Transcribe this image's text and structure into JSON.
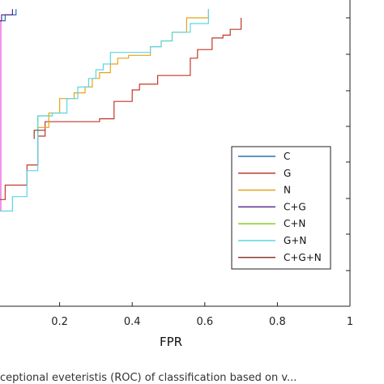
{
  "chart_data": {
    "type": "line",
    "title": "",
    "xlabel": "FPR",
    "ylabel": "",
    "xlim": [
      0,
      1
    ],
    "x_ticks": [
      "0.2",
      "0.4",
      "0.6",
      "0.8",
      "1"
    ],
    "x_tick_values": [
      0.2,
      0.4,
      0.6,
      0.8,
      1.0
    ],
    "grid": false,
    "legend_position": "center-right",
    "series": [
      {
        "name": "C",
        "color": "#2f6fb0",
        "points": [
          [
            0,
            0.99
          ],
          [
            0.05,
            0.99
          ],
          [
            0.05,
            1.01
          ],
          [
            0.08,
            1.01
          ],
          [
            0.08,
            1.03
          ]
        ]
      },
      {
        "name": "G",
        "color": "#c0392b",
        "points": [
          [
            0,
            0.37
          ],
          [
            0.05,
            0.37
          ],
          [
            0.05,
            0.42
          ],
          [
            0.11,
            0.42
          ],
          [
            0.11,
            0.49
          ],
          [
            0.14,
            0.49
          ],
          [
            0.14,
            0.59
          ],
          [
            0.16,
            0.59
          ],
          [
            0.16,
            0.64
          ],
          [
            0.31,
            0.64
          ],
          [
            0.31,
            0.65
          ],
          [
            0.35,
            0.65
          ],
          [
            0.35,
            0.71
          ],
          [
            0.4,
            0.71
          ],
          [
            0.4,
            0.75
          ],
          [
            0.42,
            0.75
          ],
          [
            0.42,
            0.77
          ],
          [
            0.47,
            0.77
          ],
          [
            0.47,
            0.8
          ],
          [
            0.56,
            0.8
          ],
          [
            0.56,
            0.86
          ],
          [
            0.58,
            0.86
          ],
          [
            0.58,
            0.89
          ],
          [
            0.62,
            0.89
          ],
          [
            0.62,
            0.93
          ],
          [
            0.65,
            0.93
          ],
          [
            0.65,
            0.94
          ],
          [
            0.67,
            0.94
          ],
          [
            0.67,
            0.96
          ],
          [
            0.7,
            0.96
          ],
          [
            0.7,
            1.0
          ]
        ]
      },
      {
        "name": "N",
        "color": "#e8a317",
        "points": [
          [
            0.14,
            0.58
          ],
          [
            0.14,
            0.62
          ],
          [
            0.17,
            0.62
          ],
          [
            0.17,
            0.67
          ],
          [
            0.2,
            0.67
          ],
          [
            0.2,
            0.72
          ],
          [
            0.24,
            0.72
          ],
          [
            0.24,
            0.74
          ],
          [
            0.27,
            0.74
          ],
          [
            0.27,
            0.76
          ],
          [
            0.29,
            0.76
          ],
          [
            0.29,
            0.79
          ],
          [
            0.31,
            0.79
          ],
          [
            0.31,
            0.81
          ],
          [
            0.34,
            0.81
          ],
          [
            0.34,
            0.84
          ],
          [
            0.36,
            0.84
          ],
          [
            0.36,
            0.86
          ],
          [
            0.39,
            0.86
          ],
          [
            0.39,
            0.87
          ],
          [
            0.45,
            0.87
          ],
          [
            0.45,
            0.9
          ],
          [
            0.48,
            0.9
          ],
          [
            0.48,
            0.92
          ],
          [
            0.51,
            0.92
          ],
          [
            0.51,
            0.95
          ],
          [
            0.55,
            0.95
          ],
          [
            0.55,
            1.0
          ],
          [
            0.61,
            1.0
          ],
          [
            0.61,
            1.03
          ]
        ]
      },
      {
        "name": "C+G",
        "color": "#5b2c8e",
        "points": [
          [
            0,
            0.99
          ],
          [
            0.04,
            0.99
          ],
          [
            0.04,
            1.01
          ],
          [
            0.07,
            1.01
          ],
          [
            0.07,
            1.03
          ]
        ]
      },
      {
        "name": "C+N",
        "color": "#7ed321",
        "points": [
          [
            0.14,
            0.58
          ],
          [
            0.14,
            0.66
          ],
          [
            0.18,
            0.66
          ]
        ]
      },
      {
        "name": "G+N",
        "color": "#5bd6e6",
        "points": [
          [
            0,
            0.3
          ],
          [
            0.02,
            0.3
          ],
          [
            0.02,
            0.33
          ],
          [
            0.07,
            0.33
          ],
          [
            0.07,
            0.38
          ],
          [
            0.11,
            0.38
          ],
          [
            0.11,
            0.47
          ],
          [
            0.14,
            0.47
          ],
          [
            0.14,
            0.66
          ],
          [
            0.18,
            0.66
          ],
          [
            0.18,
            0.67
          ],
          [
            0.22,
            0.67
          ],
          [
            0.22,
            0.72
          ],
          [
            0.25,
            0.72
          ],
          [
            0.25,
            0.76
          ],
          [
            0.28,
            0.76
          ],
          [
            0.28,
            0.79
          ],
          [
            0.3,
            0.79
          ],
          [
            0.3,
            0.82
          ],
          [
            0.32,
            0.82
          ],
          [
            0.32,
            0.84
          ],
          [
            0.34,
            0.84
          ],
          [
            0.34,
            0.88
          ],
          [
            0.45,
            0.88
          ],
          [
            0.45,
            0.9
          ],
          [
            0.48,
            0.9
          ],
          [
            0.48,
            0.92
          ],
          [
            0.51,
            0.92
          ],
          [
            0.51,
            0.95
          ],
          [
            0.56,
            0.95
          ],
          [
            0.56,
            0.98
          ],
          [
            0.61,
            0.98
          ],
          [
            0.61,
            1.03
          ]
        ]
      },
      {
        "name": "C+G+N",
        "color": "#8b3a2f",
        "points": [
          [
            0.13,
            0.58
          ],
          [
            0.13,
            0.61
          ],
          [
            0.16,
            0.61
          ]
        ]
      }
    ],
    "pink_segment": {
      "color": "#e85ae0",
      "x": 0.0,
      "y": [
        0.33,
        0.99
      ]
    }
  },
  "caption": "ceptional eveteristis (ROC) of classification based on v..."
}
